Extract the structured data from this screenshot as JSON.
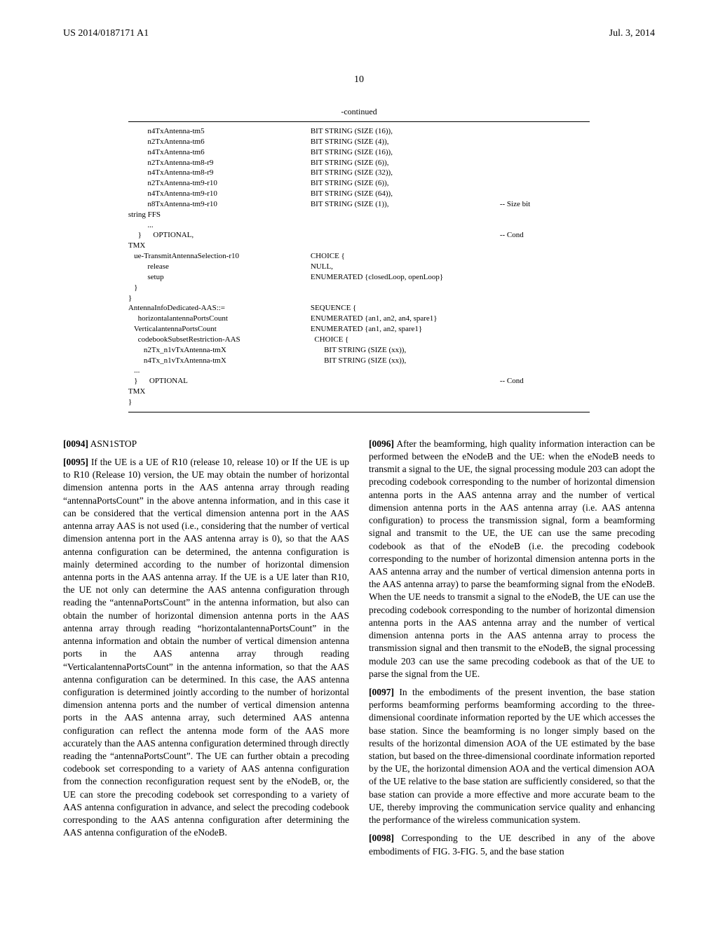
{
  "header": {
    "left": "US 2014/0187171 A1",
    "right": "Jul. 3, 2014"
  },
  "page_number": "10",
  "continued_label": "-continued",
  "code": {
    "rows": [
      {
        "l": "          n4TxAntenna-tm5",
        "m": "BIT STRING (SIZE (16)),",
        "r": ""
      },
      {
        "l": "          n2TxAntenna-tm6",
        "m": "BIT STRING (SIZE (4)),",
        "r": ""
      },
      {
        "l": "          n4TxAntenna-tm6",
        "m": "BIT STRING (SIZE (16)),",
        "r": ""
      },
      {
        "l": "          n2TxAntenna-tm8-r9",
        "m": "BIT STRING (SIZE (6)),",
        "r": ""
      },
      {
        "l": "          n4TxAntenna-tm8-r9",
        "m": "BIT STRING (SIZE (32)),",
        "r": ""
      },
      {
        "l": "          n2TxAntenna-tm9-r10",
        "m": "BIT STRING (SIZE (6)),",
        "r": ""
      },
      {
        "l": "          n4TxAntenna-tm9-r10",
        "m": "BIT STRING (SIZE (64)),",
        "r": ""
      },
      {
        "l": "          n8TxAntenna-tm9-r10",
        "m": "BIT STRING (SIZE (1)),",
        "r": "-- Size bit"
      },
      {
        "l": "string FFS",
        "m": "",
        "r": ""
      },
      {
        "l": "          ...",
        "m": "",
        "r": ""
      },
      {
        "l": "     }      OPTIONAL,",
        "m": "",
        "r": "-- Cond"
      },
      {
        "l": "TMX",
        "m": "",
        "r": ""
      },
      {
        "l": "   ue-TransmitAntennaSelection-r10",
        "m": "CHOICE {",
        "r": ""
      },
      {
        "l": "          release",
        "m": "NULL,",
        "r": ""
      },
      {
        "l": "          setup",
        "m": "ENUMERATED {closedLoop, openLoop}",
        "r": ""
      },
      {
        "l": "   }",
        "m": "",
        "r": ""
      },
      {
        "l": "}",
        "m": "",
        "r": ""
      },
      {
        "l": "AntennaInfoDedicated-AAS::=",
        "m": "SEQUENCE {",
        "r": ""
      },
      {
        "l": "     horizontalantennaPortsCount",
        "m": "ENUMERATED {an1, an2, an4, spare1}",
        "r": ""
      },
      {
        "l": "   VerticalantennaPortsCount",
        "m": "ENUMERATED {an1, an2, spare1}",
        "r": ""
      },
      {
        "l": "     codebookSubsetRestriction-AAS",
        "m": "  CHOICE {",
        "r": ""
      },
      {
        "l": "        n2Tx_n1vTxAntenna-tmX",
        "m": "       BIT STRING (SIZE (xx)),",
        "r": ""
      },
      {
        "l": "        n4Tx_n1vTxAntenna-tmX",
        "m": "       BIT STRING (SIZE (xx)),",
        "r": ""
      },
      {
        "l": "   ...",
        "m": "",
        "r": ""
      },
      {
        "l": "   }      OPTIONAL",
        "m": "",
        "r": "-- Cond"
      },
      {
        "l": "TMX",
        "m": "",
        "r": ""
      },
      {
        "l": "}",
        "m": "",
        "r": ""
      }
    ]
  },
  "left_col": {
    "p1_num": "[0094]",
    "p1_text": "   ASN1STOP",
    "p2_num": "[0095]",
    "p2_text": "   If the UE is a UE of R10 (release 10, release 10) or If the UE is up to R10 (Release 10) version, the UE may obtain the number of horizontal dimension antenna ports in the AAS antenna array through reading “antennaPortsCount” in the above antenna information, and in this case it can be considered that the vertical dimension antenna port in the AAS antenna array AAS is not used (i.e., considering that the number of vertical dimension antenna port in the AAS antenna array is 0), so that the AAS antenna configuration can be determined, the antenna configuration is mainly determined according to the number of horizontal dimension antenna ports in the AAS antenna array. If the UE is a UE later than R10, the UE not only can determine the AAS antenna configuration through reading the “antennaPortsCount” in the antenna information, but also can obtain the number of horizontal dimension antenna ports in the AAS antenna array through reading “horizontalantennaPortsCount” in the antenna information and obtain the number of vertical dimension antenna ports in the AAS antenna array through reading “VerticalantennaPortsCount” in the antenna information, so that the AAS antenna configuration can be determined. In this case, the AAS antenna configuration is determined jointly according to the number of horizontal dimension antenna ports and the number of vertical dimension antenna ports in the AAS antenna array, such determined AAS antenna configuration can reflect the antenna mode form of the AAS more accurately than the AAS antenna configuration determined through directly reading the “antennaPortsCount”. The UE can further obtain a precoding codebook set corresponding to a variety of AAS antenna configuration from the connection reconfiguration request sent by the eNodeB, or, the UE can store the precoding codebook set corresponding to a variety of AAS antenna configuration in advance, and select the precoding codebook corresponding to the AAS antenna configuration after determining the AAS antenna configuration of the eNodeB."
  },
  "right_col": {
    "p1_num": "[0096]",
    "p1_text": "   After the beamforming, high quality information interaction can be performed between the eNodeB and the UE: when the eNodeB needs to transmit a signal to the UE, the signal processing module 203 can adopt the precoding codebook corresponding to the number of horizontal dimension antenna ports in the AAS antenna array and the number of vertical dimension antenna ports in the AAS antenna array (i.e. AAS antenna configuration) to process the transmission signal, form a beamforming signal and transmit to the UE, the UE can use the same precoding codebook as that of the eNodeB (i.e. the precoding codebook corresponding to the number of horizontal dimension antenna ports in the AAS antenna array and the number of vertical dimension antenna ports in the AAS antenna array) to parse the beamforming signal from the eNodeB. When the UE needs to transmit a signal to the eNodeB, the UE can use the precoding codebook corresponding to the number of horizontal dimension antenna ports in the AAS antenna array and the number of vertical dimension antenna ports in the AAS antenna array to process the transmission signal and then transmit to the eNodeB, the signal processing module 203 can use the same precoding codebook as that of the UE to parse the signal from the UE.",
    "p2_num": "[0097]",
    "p2_text": "   In the embodiments of the present invention, the base station performs beamforming performs beamforming according to the three-dimensional coordinate information reported by the UE which accesses the base station. Since the beamforming is no longer simply based on the results of the horizontal dimension AOA of the UE estimated by the base station, but based on the three-dimensional coordinate information reported by the UE, the horizontal dimension AOA and the vertical dimension AOA of the UE relative to the base station are sufficiently considered, so that the base station can provide a more effective and more accurate beam to the UE, thereby improving the communication service quality and enhancing the performance of the wireless communication system.",
    "p3_num": "[0098]",
    "p3_text": "   Corresponding to the UE described in any of the above embodiments of FIG. 3-FIG. 5, and the base station"
  }
}
